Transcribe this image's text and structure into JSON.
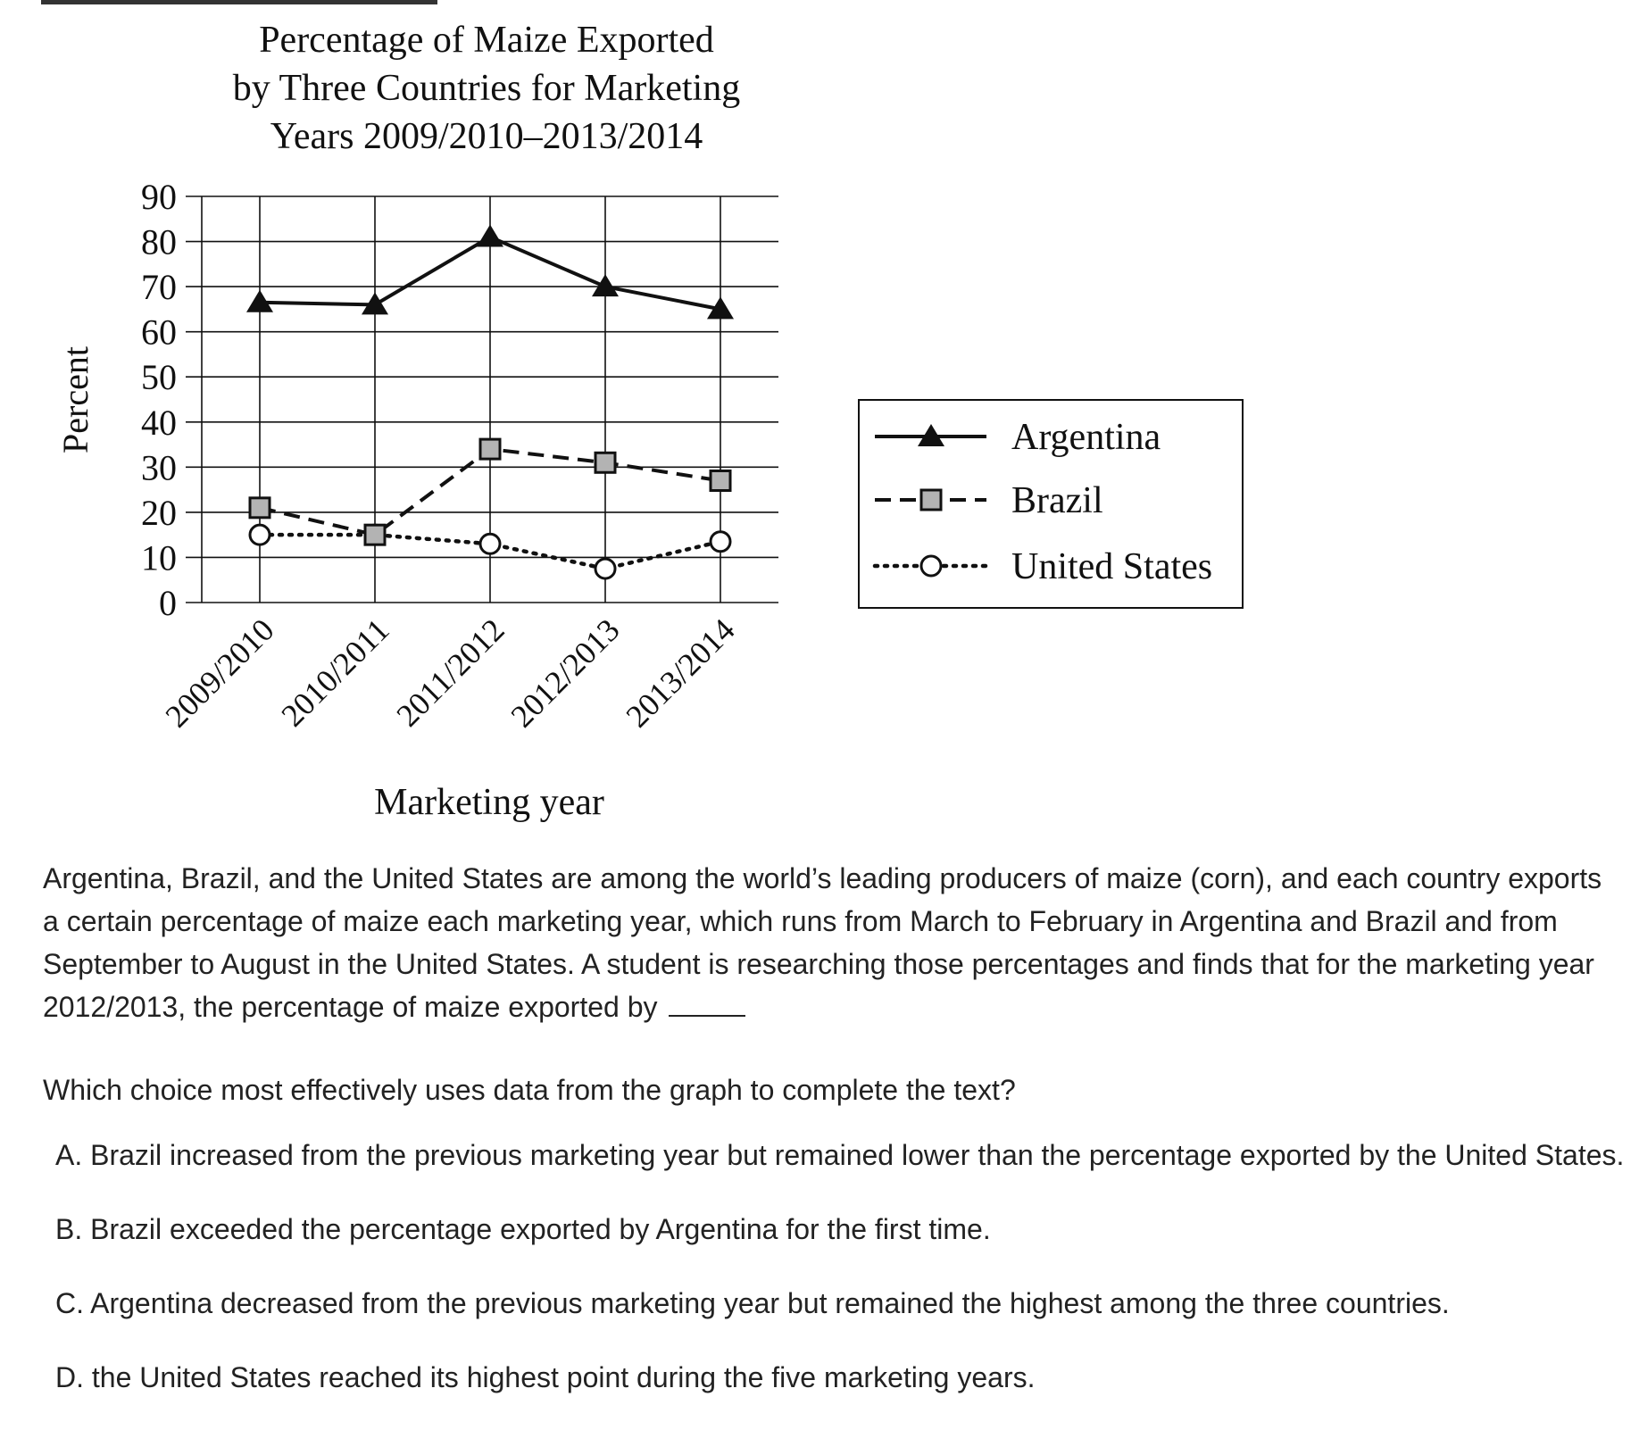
{
  "chart_data": {
    "type": "line",
    "title_lines": [
      "Percentage of Maize Exported",
      "by Three Countries for Marketing",
      "Years 2009/2010–2013/2014"
    ],
    "xlabel": "Marketing year",
    "ylabel": "Percent",
    "categories": [
      "2009/2010",
      "2010/2011",
      "2011/2012",
      "2012/2013",
      "2013/2014"
    ],
    "yticks": [
      "90",
      "80",
      "70",
      "60",
      "50",
      "40",
      "30",
      "20",
      "10",
      "0"
    ],
    "ylim": [
      0,
      90
    ],
    "grid": true,
    "legend_position": "right",
    "series": [
      {
        "name": "Argentina",
        "values": [
          66.5,
          66,
          81,
          70,
          65
        ],
        "marker": "triangle",
        "line_style": "solid"
      },
      {
        "name": "Brazil",
        "values": [
          21,
          15,
          34,
          31,
          27
        ],
        "marker": "square",
        "line_style": "dashed"
      },
      {
        "name": "United States",
        "values": [
          15,
          15,
          13,
          7.5,
          13.5
        ],
        "marker": "circle",
        "line_style": "dotted"
      }
    ]
  },
  "colors": {
    "line": "#111111",
    "square_fill": "#b3b3b3",
    "circle_fill": "#ffffff"
  },
  "passage": {
    "text": "Argentina, Brazil, and the United States are among the world’s leading producers of maize (corn), and each country exports a certain percentage of maize each marketing year, which runs from March to February in Argentina and Brazil and from September to August in the United States. A student is researching those percentages and finds that for the marketing year 2012/2013, the percentage of maize exported by"
  },
  "question": "Which choice most effectively uses data from the graph to complete the text?",
  "choices": [
    "A. Brazil increased from the previous marketing year but remained lower than the percentage exported by the United States.",
    "B. Brazil exceeded the percentage exported by Argentina for the first time.",
    "C. Argentina decreased from the previous marketing year but remained the highest among the three countries.",
    "D. the United States reached its highest point during the five marketing years."
  ]
}
